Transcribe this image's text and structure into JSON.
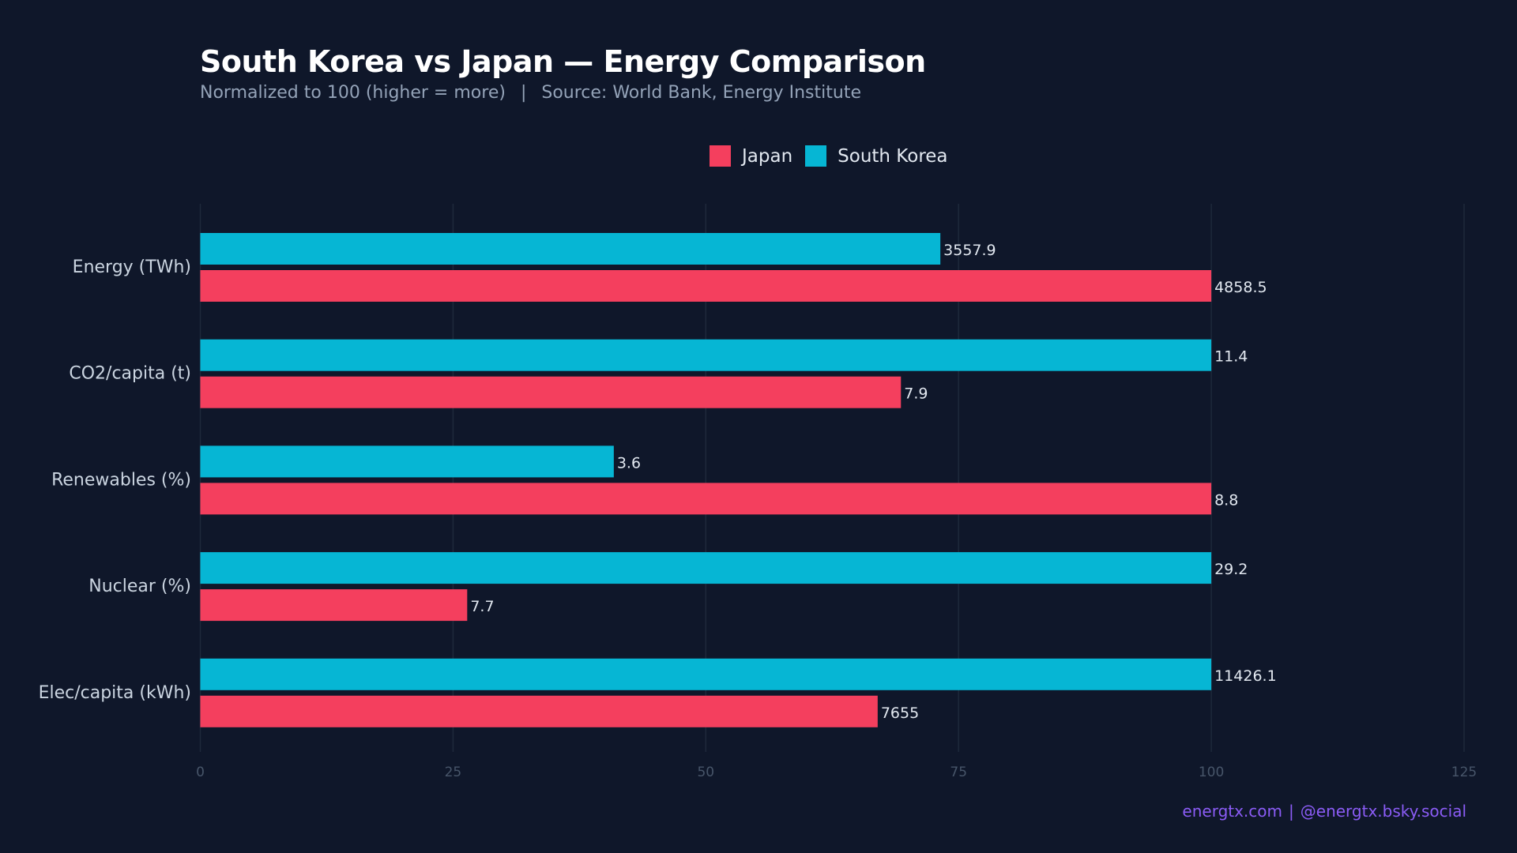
{
  "chart_data": {
    "type": "bar",
    "orientation": "horizontal",
    "title": "South Korea vs Japan — Energy Comparison",
    "subtitle": "Normalized to 100 (higher = more)",
    "source": "Source: World Bank, Energy Institute",
    "categories": [
      "Energy (TWh)",
      "CO2/capita (t)",
      "Renewables (%)",
      "Nuclear (%)",
      "Elec/capita (kWh)"
    ],
    "series": [
      {
        "name": "South Korea",
        "color": "#06b6d4",
        "values": [
          73.2,
          100,
          40.9,
          100,
          100
        ],
        "labels": [
          "3557.9",
          "11.4",
          "3.6",
          "29.2",
          "11426.1"
        ]
      },
      {
        "name": "Japan",
        "color": "#f43f5e",
        "values": [
          100,
          69.3,
          100,
          26.4,
          67.0
        ],
        "labels": [
          "4858.5",
          "7.9",
          "8.8",
          "7.7",
          "7655"
        ]
      }
    ],
    "xlim": [
      0,
      125
    ],
    "xticks": [
      "0",
      "25",
      "50",
      "75",
      "100",
      "125"
    ],
    "grid": true,
    "legend_placement": "top-center",
    "legend_order": [
      "Japan",
      "South Korea"
    ]
  },
  "footer": {
    "site": "energtx.com",
    "separator": "|",
    "social": "@energtx.bsky.social"
  },
  "subtitle_separator": "|"
}
